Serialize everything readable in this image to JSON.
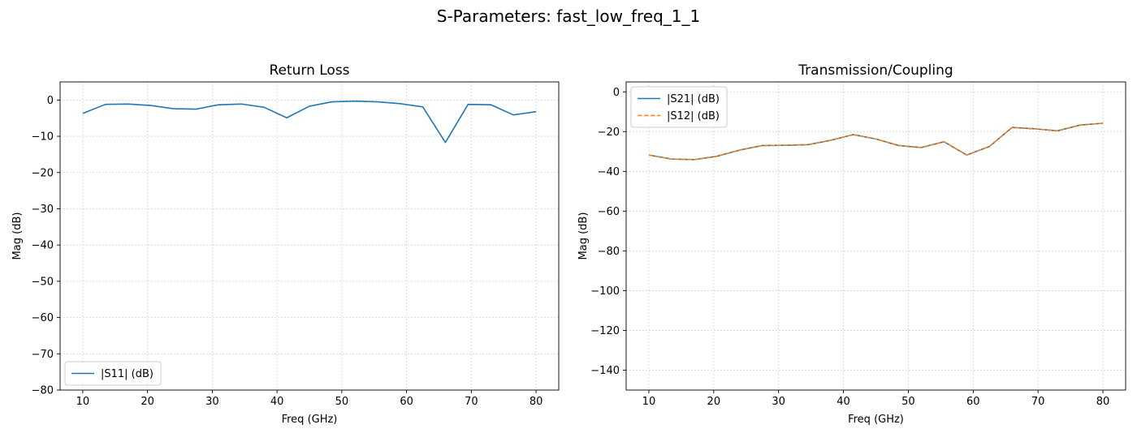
{
  "figure": {
    "suptitle": "S-Parameters: fast_low_freq_1_1"
  },
  "chart_data": [
    {
      "type": "line",
      "title": "Return Loss",
      "xlabel": "Freq (GHz)",
      "ylabel": "Mag (dB)",
      "xlim": [
        6.5,
        83.5
      ],
      "ylim": [
        -80,
        5
      ],
      "xticks": [
        10,
        20,
        30,
        40,
        50,
        60,
        70,
        80
      ],
      "yticks": [
        0,
        -10,
        -20,
        -30,
        -40,
        -50,
        -60,
        -70,
        -80
      ],
      "grid": true,
      "legend_position": "lower left",
      "x": [
        10,
        13.5,
        17,
        20.5,
        24,
        27.5,
        31,
        34.5,
        38,
        41.5,
        45,
        48.5,
        52,
        55.5,
        59,
        62.5,
        66,
        69.5,
        73,
        76.5,
        80
      ],
      "series": [
        {
          "name": "|S11| (dB)",
          "color": "#1f77b4",
          "dash": "solid",
          "values": [
            -3.7,
            -1.2,
            -1.1,
            -1.5,
            -2.4,
            -2.5,
            -1.3,
            -1.1,
            -2.0,
            -4.9,
            -1.7,
            -0.5,
            -0.3,
            -0.5,
            -1.0,
            -1.9,
            -11.7,
            -1.2,
            -1.3,
            -4.1,
            -3.2
          ]
        }
      ]
    },
    {
      "type": "line",
      "title": "Transmission/Coupling",
      "xlabel": "Freq (GHz)",
      "ylabel": "Mag (dB)",
      "xlim": [
        6.5,
        83.5
      ],
      "ylim": [
        -150,
        5
      ],
      "xticks": [
        10,
        20,
        30,
        40,
        50,
        60,
        70,
        80
      ],
      "yticks": [
        0,
        -20,
        -40,
        -60,
        -80,
        -100,
        -120,
        -140
      ],
      "grid": true,
      "legend_position": "upper left",
      "x": [
        10,
        13.5,
        17,
        20.5,
        24,
        27.5,
        31,
        34.5,
        38,
        41.5,
        45,
        48.5,
        52,
        55.5,
        59,
        62.5,
        66,
        69.5,
        73,
        76.5,
        80
      ],
      "series": [
        {
          "name": "|S21| (dB)",
          "color": "#1f77b4",
          "dash": "solid",
          "values": [
            -31.8,
            -33.8,
            -34.1,
            -32.4,
            -29.3,
            -27.0,
            -26.9,
            -26.6,
            -24.4,
            -21.5,
            -23.7,
            -27.0,
            -28.0,
            -25.1,
            -31.8,
            -27.5,
            -17.9,
            -18.6,
            -19.6,
            -16.7,
            -15.8
          ]
        },
        {
          "name": "|S12| (dB)",
          "color": "#ff7f0e",
          "dash": "dashed",
          "values": [
            -31.8,
            -33.8,
            -34.1,
            -32.4,
            -29.3,
            -27.0,
            -26.9,
            -26.6,
            -24.4,
            -21.5,
            -23.7,
            -27.0,
            -28.0,
            -25.1,
            -31.8,
            -27.5,
            -17.9,
            -18.6,
            -19.6,
            -16.7,
            -15.8
          ]
        }
      ]
    }
  ]
}
